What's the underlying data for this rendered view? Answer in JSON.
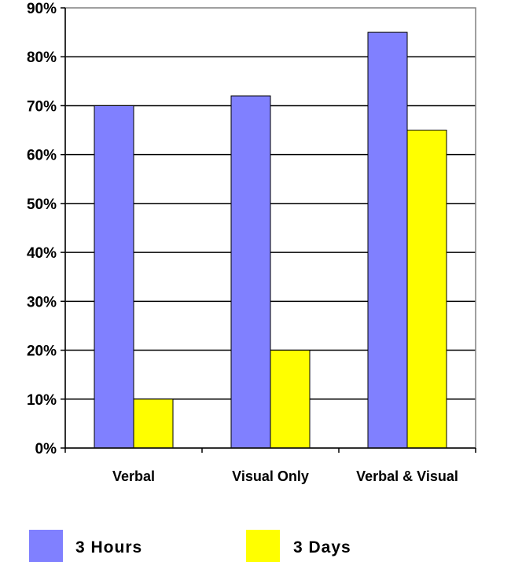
{
  "chart_data": {
    "type": "bar",
    "categories": [
      "Verbal",
      "Visual Only",
      "Verbal & Visual"
    ],
    "series": [
      {
        "name": "3 Hours",
        "values": [
          70,
          72,
          85
        ],
        "color": "#8080ff"
      },
      {
        "name": "3 Days",
        "values": [
          10,
          20,
          65
        ],
        "color": "#ffff00"
      }
    ],
    "yticks": [
      "0%",
      "10%",
      "20%",
      "30%",
      "40%",
      "50%",
      "60%",
      "70%",
      "80%",
      "90%"
    ],
    "ylim": [
      0,
      90
    ],
    "ytick_step": 10,
    "grid": true,
    "legend": "bottom"
  }
}
